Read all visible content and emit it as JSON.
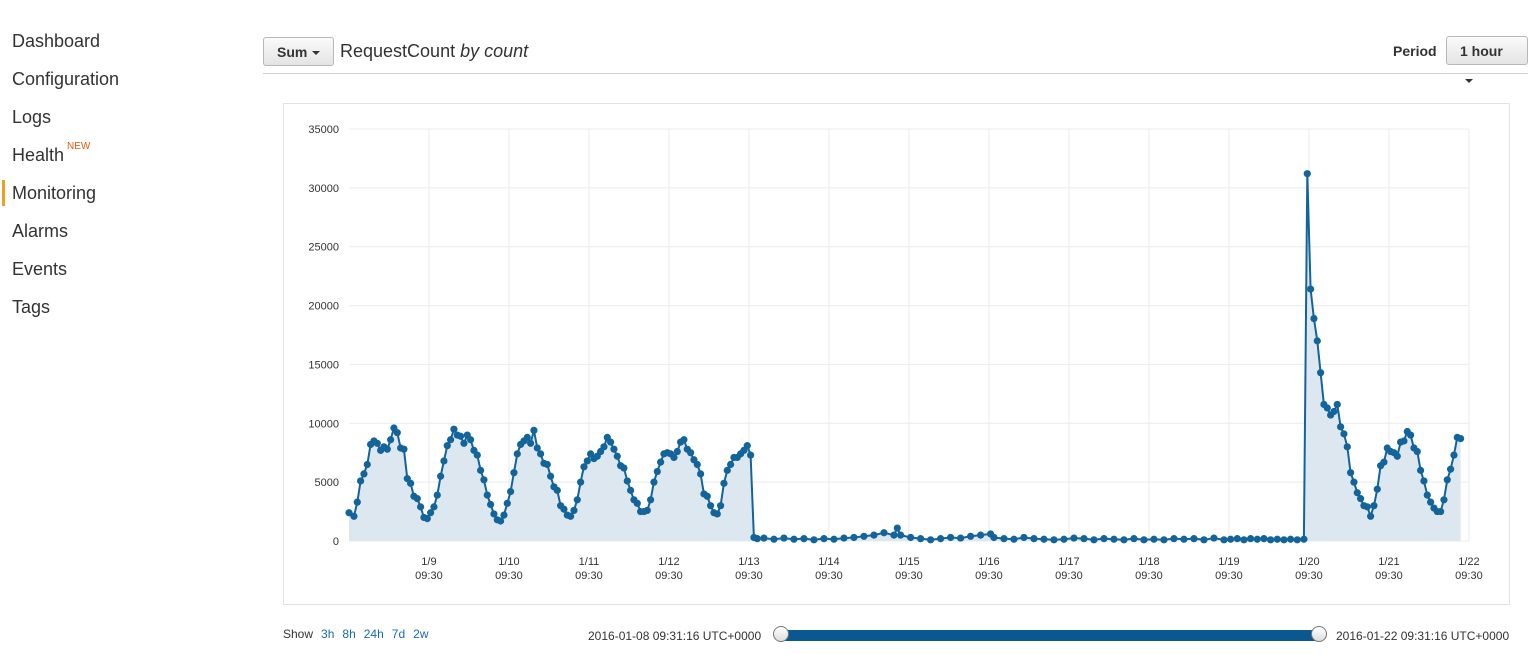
{
  "sidebar": {
    "items": [
      {
        "label": "Dashboard"
      },
      {
        "label": "Configuration"
      },
      {
        "label": "Logs"
      },
      {
        "label": "Health",
        "badge": "NEW"
      },
      {
        "label": "Monitoring",
        "active": true
      },
      {
        "label": "Alarms"
      },
      {
        "label": "Events"
      },
      {
        "label": "Tags"
      }
    ]
  },
  "header": {
    "statistic_button": "Sum",
    "metric_name": "RequestCount",
    "metric_unit": "by count",
    "period_label": "Period",
    "period_value": "1 hour"
  },
  "colors": {
    "line": "#12649b",
    "fill": "#dde7f0",
    "accent": "#f0a020",
    "slider": "#0a5890",
    "link": "#1a6ab7"
  },
  "footer": {
    "show_label": "Show",
    "ranges": [
      "3h",
      "8h",
      "24h",
      "7d",
      "2w"
    ],
    "range_start": "2016-01-08 09:31:16 UTC+0000",
    "range_end": "2016-01-22 09:31:16 UTC+0000"
  },
  "chart_data": {
    "type": "area",
    "title": "",
    "xlabel": "",
    "ylabel": "",
    "ylim": [
      0,
      35000
    ],
    "yticks": [
      0,
      5000,
      10000,
      15000,
      20000,
      25000,
      30000,
      35000
    ],
    "xlim": [
      "2016-01-08 09:31",
      "2016-01-22 09:31"
    ],
    "grid": true,
    "legend": "none",
    "xtick_labels": [
      {
        "date": "2016-01-09 09:30",
        "line1": "1/9",
        "line2": "09:30"
      },
      {
        "date": "2016-01-10 09:30",
        "line1": "1/10",
        "line2": "09:30"
      },
      {
        "date": "2016-01-11 09:30",
        "line1": "1/11",
        "line2": "09:30"
      },
      {
        "date": "2016-01-12 09:30",
        "line1": "1/12",
        "line2": "09:30"
      },
      {
        "date": "2016-01-13 09:30",
        "line1": "1/13",
        "line2": "09:30"
      },
      {
        "date": "2016-01-14 09:30",
        "line1": "1/14",
        "line2": "09:30"
      },
      {
        "date": "2016-01-15 09:30",
        "line1": "1/15",
        "line2": "09:30"
      },
      {
        "date": "2016-01-16 09:30",
        "line1": "1/16",
        "line2": "09:30"
      },
      {
        "date": "2016-01-17 09:30",
        "line1": "1/17",
        "line2": "09:30"
      },
      {
        "date": "2016-01-18 09:30",
        "line1": "1/18",
        "line2": "09:30"
      },
      {
        "date": "2016-01-19 09:30",
        "line1": "1/19",
        "line2": "09:30"
      },
      {
        "date": "2016-01-20 09:30",
        "line1": "1/20",
        "line2": "09:30"
      },
      {
        "date": "2016-01-21 09:30",
        "line1": "1/21",
        "line2": "09:30"
      },
      {
        "date": "2016-01-22 09:30",
        "line1": "1/22",
        "line2": "09:30"
      }
    ],
    "series": [
      {
        "name": "RequestCount",
        "points": [
          [
            "2016-01-08 09:31",
            2400
          ],
          [
            "2016-01-08 11:00",
            2100
          ],
          [
            "2016-01-08 12:00",
            3300
          ],
          [
            "2016-01-08 13:00",
            5100
          ],
          [
            "2016-01-08 14:00",
            5700
          ],
          [
            "2016-01-08 15:00",
            6500
          ],
          [
            "2016-01-08 16:00",
            8200
          ],
          [
            "2016-01-08 17:00",
            8500
          ],
          [
            "2016-01-08 18:00",
            8300
          ],
          [
            "2016-01-08 19:00",
            7700
          ],
          [
            "2016-01-08 20:00",
            8000
          ],
          [
            "2016-01-08 21:00",
            7800
          ],
          [
            "2016-01-08 22:00",
            8600
          ],
          [
            "2016-01-08 23:00",
            9600
          ],
          [
            "2016-01-09 00:00",
            9200
          ],
          [
            "2016-01-09 01:00",
            7900
          ],
          [
            "2016-01-09 02:00",
            7800
          ],
          [
            "2016-01-09 03:00",
            5300
          ],
          [
            "2016-01-09 04:00",
            4900
          ],
          [
            "2016-01-09 05:00",
            3800
          ],
          [
            "2016-01-09 06:00",
            3600
          ],
          [
            "2016-01-09 07:00",
            2900
          ],
          [
            "2016-01-09 08:00",
            2000
          ],
          [
            "2016-01-09 09:00",
            1900
          ],
          [
            "2016-01-09 10:00",
            2400
          ],
          [
            "2016-01-09 11:00",
            2900
          ],
          [
            "2016-01-09 12:00",
            3900
          ],
          [
            "2016-01-09 13:00",
            5500
          ],
          [
            "2016-01-09 14:00",
            6800
          ],
          [
            "2016-01-09 15:00",
            8100
          ],
          [
            "2016-01-09 16:00",
            8600
          ],
          [
            "2016-01-09 17:00",
            9500
          ],
          [
            "2016-01-09 18:00",
            9000
          ],
          [
            "2016-01-09 19:00",
            8900
          ],
          [
            "2016-01-09 20:00",
            8300
          ],
          [
            "2016-01-09 21:00",
            9000
          ],
          [
            "2016-01-09 22:00",
            8600
          ],
          [
            "2016-01-09 23:00",
            7700
          ],
          [
            "2016-01-10 00:00",
            7300
          ],
          [
            "2016-01-10 01:00",
            6000
          ],
          [
            "2016-01-10 02:00",
            5200
          ],
          [
            "2016-01-10 03:00",
            3900
          ],
          [
            "2016-01-10 04:00",
            3100
          ],
          [
            "2016-01-10 05:00",
            2300
          ],
          [
            "2016-01-10 06:00",
            1800
          ],
          [
            "2016-01-10 07:00",
            1700
          ],
          [
            "2016-01-10 08:00",
            2200
          ],
          [
            "2016-01-10 09:00",
            3200
          ],
          [
            "2016-01-10 10:00",
            4200
          ],
          [
            "2016-01-10 11:00",
            5800
          ],
          [
            "2016-01-10 12:00",
            7400
          ],
          [
            "2016-01-10 13:00",
            8200
          ],
          [
            "2016-01-10 14:00",
            8500
          ],
          [
            "2016-01-10 15:00",
            8800
          ],
          [
            "2016-01-10 16:00",
            8300
          ],
          [
            "2016-01-10 17:00",
            9400
          ],
          [
            "2016-01-10 18:00",
            7900
          ],
          [
            "2016-01-10 19:00",
            7400
          ],
          [
            "2016-01-10 20:00",
            6600
          ],
          [
            "2016-01-10 21:00",
            6500
          ],
          [
            "2016-01-10 22:00",
            5500
          ],
          [
            "2016-01-10 23:00",
            4600
          ],
          [
            "2016-01-11 00:00",
            4300
          ],
          [
            "2016-01-11 01:00",
            3000
          ],
          [
            "2016-01-11 02:00",
            2700
          ],
          [
            "2016-01-11 03:00",
            2200
          ],
          [
            "2016-01-11 04:00",
            2100
          ],
          [
            "2016-01-11 05:00",
            2600
          ],
          [
            "2016-01-11 06:00",
            3500
          ],
          [
            "2016-01-11 07:00",
            5000
          ],
          [
            "2016-01-11 08:00",
            6300
          ],
          [
            "2016-01-11 09:00",
            6800
          ],
          [
            "2016-01-11 10:00",
            7400
          ],
          [
            "2016-01-11 11:00",
            7000
          ],
          [
            "2016-01-11 12:00",
            7200
          ],
          [
            "2016-01-11 13:00",
            7600
          ],
          [
            "2016-01-11 14:00",
            8000
          ],
          [
            "2016-01-11 15:00",
            8800
          ],
          [
            "2016-01-11 16:00",
            8400
          ],
          [
            "2016-01-11 17:00",
            7800
          ],
          [
            "2016-01-11 18:00",
            7200
          ],
          [
            "2016-01-11 19:00",
            6400
          ],
          [
            "2016-01-11 20:00",
            6200
          ],
          [
            "2016-01-11 21:00",
            5100
          ],
          [
            "2016-01-11 22:00",
            4300
          ],
          [
            "2016-01-11 23:00",
            3500
          ],
          [
            "2016-01-12 00:00",
            3200
          ],
          [
            "2016-01-12 01:00",
            2500
          ],
          [
            "2016-01-12 02:00",
            2500
          ],
          [
            "2016-01-12 03:00",
            2600
          ],
          [
            "2016-01-12 04:00",
            3500
          ],
          [
            "2016-01-12 05:00",
            5000
          ],
          [
            "2016-01-12 06:00",
            5900
          ],
          [
            "2016-01-12 07:00",
            6700
          ],
          [
            "2016-01-12 08:00",
            7400
          ],
          [
            "2016-01-12 09:00",
            7500
          ],
          [
            "2016-01-12 10:00",
            7400
          ],
          [
            "2016-01-12 11:00",
            7100
          ],
          [
            "2016-01-12 12:00",
            7600
          ],
          [
            "2016-01-12 13:00",
            8400
          ],
          [
            "2016-01-12 14:00",
            8600
          ],
          [
            "2016-01-12 15:00",
            7800
          ],
          [
            "2016-01-12 16:00",
            7500
          ],
          [
            "2016-01-12 17:00",
            6900
          ],
          [
            "2016-01-12 18:00",
            6500
          ],
          [
            "2016-01-12 19:00",
            5700
          ],
          [
            "2016-01-12 20:00",
            4000
          ],
          [
            "2016-01-12 21:00",
            3800
          ],
          [
            "2016-01-12 22:00",
            3000
          ],
          [
            "2016-01-12 23:00",
            2400
          ],
          [
            "2016-01-13 00:00",
            2300
          ],
          [
            "2016-01-13 01:00",
            3000
          ],
          [
            "2016-01-13 02:00",
            4900
          ],
          [
            "2016-01-13 03:00",
            6000
          ],
          [
            "2016-01-13 04:00",
            6500
          ],
          [
            "2016-01-13 05:00",
            7100
          ],
          [
            "2016-01-13 06:00",
            7100
          ],
          [
            "2016-01-13 07:00",
            7400
          ],
          [
            "2016-01-13 08:00",
            7700
          ],
          [
            "2016-01-13 09:00",
            8100
          ],
          [
            "2016-01-13 10:00",
            7300
          ],
          [
            "2016-01-13 11:00",
            300
          ],
          [
            "2016-01-13 12:00",
            200
          ],
          [
            "2016-01-13 14:00",
            250
          ],
          [
            "2016-01-13 17:00",
            150
          ],
          [
            "2016-01-13 20:00",
            250
          ],
          [
            "2016-01-13 23:00",
            150
          ],
          [
            "2016-01-14 02:00",
            200
          ],
          [
            "2016-01-14 05:00",
            100
          ],
          [
            "2016-01-14 08:00",
            200
          ],
          [
            "2016-01-14 11:00",
            150
          ],
          [
            "2016-01-14 14:00",
            250
          ],
          [
            "2016-01-14 17:00",
            300
          ],
          [
            "2016-01-14 20:00",
            400
          ],
          [
            "2016-01-14 23:00",
            500
          ],
          [
            "2016-01-15 02:00",
            700
          ],
          [
            "2016-01-15 05:00",
            500
          ],
          [
            "2016-01-15 06:00",
            1100
          ],
          [
            "2016-01-15 07:00",
            500
          ],
          [
            "2016-01-15 10:00",
            300
          ],
          [
            "2016-01-15 13:00",
            200
          ],
          [
            "2016-01-15 16:00",
            100
          ],
          [
            "2016-01-15 19:00",
            200
          ],
          [
            "2016-01-15 22:00",
            300
          ],
          [
            "2016-01-16 01:00",
            250
          ],
          [
            "2016-01-16 04:00",
            400
          ],
          [
            "2016-01-16 07:00",
            500
          ],
          [
            "2016-01-16 10:00",
            600
          ],
          [
            "2016-01-16 11:00",
            300
          ],
          [
            "2016-01-16 14:00",
            200
          ],
          [
            "2016-01-16 17:00",
            150
          ],
          [
            "2016-01-16 20:00",
            300
          ],
          [
            "2016-01-16 23:00",
            200
          ],
          [
            "2016-01-17 02:00",
            150
          ],
          [
            "2016-01-17 05:00",
            100
          ],
          [
            "2016-01-17 08:00",
            150
          ],
          [
            "2016-01-17 11:00",
            250
          ],
          [
            "2016-01-17 14:00",
            200
          ],
          [
            "2016-01-17 17:00",
            100
          ],
          [
            "2016-01-17 20:00",
            200
          ],
          [
            "2016-01-17 23:00",
            150
          ],
          [
            "2016-01-18 02:00",
            100
          ],
          [
            "2016-01-18 05:00",
            200
          ],
          [
            "2016-01-18 08:00",
            100
          ],
          [
            "2016-01-18 11:00",
            150
          ],
          [
            "2016-01-18 14:00",
            100
          ],
          [
            "2016-01-18 17:00",
            200
          ],
          [
            "2016-01-18 20:00",
            150
          ],
          [
            "2016-01-18 23:00",
            200
          ],
          [
            "2016-01-19 02:00",
            100
          ],
          [
            "2016-01-19 05:00",
            250
          ],
          [
            "2016-01-19 08:00",
            100
          ],
          [
            "2016-01-19 10:00",
            150
          ],
          [
            "2016-01-19 12:00",
            200
          ],
          [
            "2016-01-19 14:00",
            100
          ],
          [
            "2016-01-19 16:00",
            200
          ],
          [
            "2016-01-19 18:00",
            150
          ],
          [
            "2016-01-19 20:00",
            200
          ],
          [
            "2016-01-19 22:00",
            100
          ],
          [
            "2016-01-20 00:00",
            150
          ],
          [
            "2016-01-20 02:00",
            100
          ],
          [
            "2016-01-20 04:00",
            150
          ],
          [
            "2016-01-20 06:00",
            100
          ],
          [
            "2016-01-20 08:00",
            150
          ],
          [
            "2016-01-20 09:00",
            31200
          ],
          [
            "2016-01-20 10:00",
            21400
          ],
          [
            "2016-01-20 11:00",
            18900
          ],
          [
            "2016-01-20 12:00",
            17000
          ],
          [
            "2016-01-20 13:00",
            14300
          ],
          [
            "2016-01-20 14:00",
            11600
          ],
          [
            "2016-01-20 15:00",
            11300
          ],
          [
            "2016-01-20 16:00",
            10700
          ],
          [
            "2016-01-20 17:00",
            11000
          ],
          [
            "2016-01-20 18:00",
            11600
          ],
          [
            "2016-01-20 19:00",
            9700
          ],
          [
            "2016-01-20 20:00",
            9100
          ],
          [
            "2016-01-20 21:00",
            8000
          ],
          [
            "2016-01-20 22:00",
            5800
          ],
          [
            "2016-01-20 23:00",
            5000
          ],
          [
            "2016-01-21 00:00",
            4100
          ],
          [
            "2016-01-21 01:00",
            3600
          ],
          [
            "2016-01-21 02:00",
            3000
          ],
          [
            "2016-01-21 03:00",
            2900
          ],
          [
            "2016-01-21 04:00",
            2100
          ],
          [
            "2016-01-21 05:00",
            3000
          ],
          [
            "2016-01-21 06:00",
            4400
          ],
          [
            "2016-01-21 07:00",
            6400
          ],
          [
            "2016-01-21 08:00",
            6700
          ],
          [
            "2016-01-21 09:00",
            7900
          ],
          [
            "2016-01-21 10:00",
            7600
          ],
          [
            "2016-01-21 11:00",
            7500
          ],
          [
            "2016-01-21 12:00",
            7200
          ],
          [
            "2016-01-21 13:00",
            8400
          ],
          [
            "2016-01-21 14:00",
            8500
          ],
          [
            "2016-01-21 15:00",
            9300
          ],
          [
            "2016-01-21 16:00",
            9000
          ],
          [
            "2016-01-21 17:00",
            7900
          ],
          [
            "2016-01-21 18:00",
            7600
          ],
          [
            "2016-01-21 19:00",
            6000
          ],
          [
            "2016-01-21 20:00",
            5100
          ],
          [
            "2016-01-21 21:00",
            3900
          ],
          [
            "2016-01-21 22:00",
            3300
          ],
          [
            "2016-01-21 23:00",
            2800
          ],
          [
            "2016-01-22 00:00",
            2500
          ],
          [
            "2016-01-22 01:00",
            2500
          ],
          [
            "2016-01-22 02:00",
            3500
          ],
          [
            "2016-01-22 03:00",
            5200
          ],
          [
            "2016-01-22 04:00",
            6100
          ],
          [
            "2016-01-22 05:00",
            7300
          ],
          [
            "2016-01-22 06:00",
            8800
          ],
          [
            "2016-01-22 07:00",
            8700
          ]
        ]
      }
    ]
  }
}
